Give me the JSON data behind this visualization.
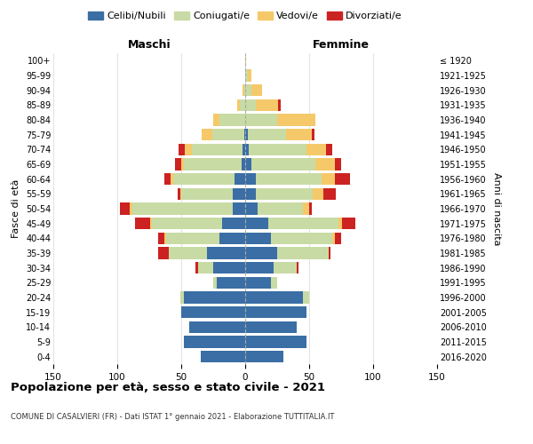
{
  "age_groups": [
    "0-4",
    "5-9",
    "10-14",
    "15-19",
    "20-24",
    "25-29",
    "30-34",
    "35-39",
    "40-44",
    "45-49",
    "50-54",
    "55-59",
    "60-64",
    "65-69",
    "70-74",
    "75-79",
    "80-84",
    "85-89",
    "90-94",
    "95-99",
    "100+"
  ],
  "birth_years": [
    "2016-2020",
    "2011-2015",
    "2006-2010",
    "2001-2005",
    "1996-2000",
    "1991-1995",
    "1986-1990",
    "1981-1985",
    "1976-1980",
    "1971-1975",
    "1966-1970",
    "1961-1965",
    "1956-1960",
    "1951-1955",
    "1946-1950",
    "1941-1945",
    "1936-1940",
    "1931-1935",
    "1926-1930",
    "1921-1925",
    "≤ 1920"
  ],
  "males": {
    "celibi": [
      35,
      48,
      44,
      50,
      48,
      22,
      25,
      30,
      20,
      18,
      10,
      10,
      8,
      3,
      2,
      1,
      0,
      0,
      0,
      0,
      0
    ],
    "coniugati": [
      0,
      0,
      0,
      0,
      3,
      3,
      12,
      30,
      42,
      55,
      78,
      40,
      48,
      45,
      40,
      25,
      20,
      4,
      1,
      0,
      0
    ],
    "vedovi": [
      0,
      0,
      0,
      0,
      0,
      0,
      0,
      0,
      1,
      1,
      2,
      1,
      2,
      2,
      5,
      8,
      5,
      2,
      1,
      0,
      0
    ],
    "divorziati": [
      0,
      0,
      0,
      0,
      0,
      0,
      2,
      8,
      5,
      12,
      8,
      2,
      5,
      5,
      5,
      0,
      0,
      0,
      0,
      0,
      0
    ]
  },
  "females": {
    "nubili": [
      30,
      48,
      40,
      48,
      45,
      20,
      22,
      25,
      20,
      18,
      10,
      8,
      8,
      5,
      3,
      2,
      0,
      0,
      0,
      0,
      0
    ],
    "coniugate": [
      0,
      0,
      0,
      0,
      5,
      5,
      18,
      40,
      48,
      55,
      35,
      45,
      52,
      50,
      45,
      30,
      25,
      8,
      5,
      2,
      0
    ],
    "vedove": [
      0,
      0,
      0,
      0,
      0,
      0,
      0,
      0,
      2,
      3,
      5,
      8,
      10,
      15,
      15,
      20,
      30,
      18,
      8,
      3,
      1
    ],
    "divorziate": [
      0,
      0,
      0,
      0,
      0,
      0,
      2,
      2,
      5,
      10,
      2,
      10,
      12,
      5,
      5,
      2,
      0,
      2,
      0,
      0,
      0
    ]
  },
  "colors": {
    "celibi": "#3a6ea5",
    "coniugati": "#c8dba4",
    "vedovi": "#f5c96a",
    "divorziati": "#cc2222"
  },
  "xlim": 150,
  "title": "Popolazione per età, sesso e stato civile - 2021",
  "subtitle": "COMUNE DI CASALVIERI (FR) - Dati ISTAT 1° gennaio 2021 - Elaborazione TUTTITALIA.IT",
  "ylabel_left": "Fasce di età",
  "ylabel_right": "Anni di nascita",
  "xlabel_left": "Maschi",
  "xlabel_right": "Femmine",
  "legend_labels": [
    "Celibi/Nubili",
    "Coniugati/e",
    "Vedovi/e",
    "Divorziati/e"
  ]
}
